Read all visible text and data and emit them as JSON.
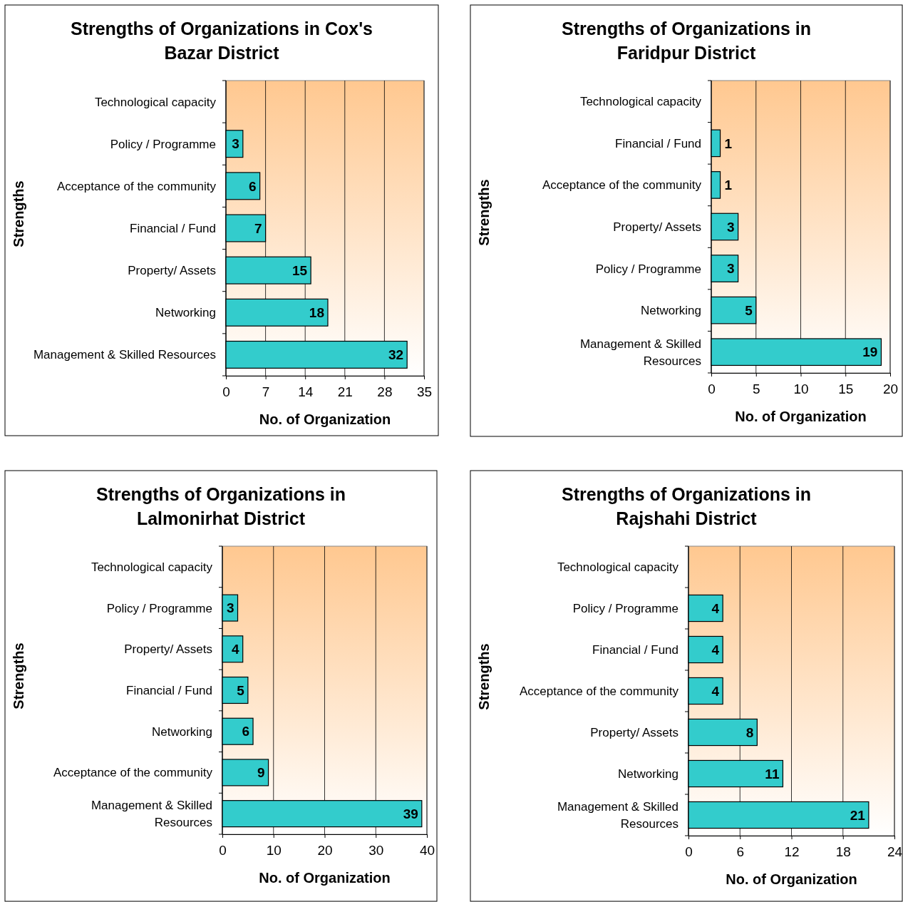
{
  "chart_data": [
    {
      "type": "bar",
      "orientation": "horizontal",
      "title": "Strengths of Organizations in Cox's Bazar District",
      "xlabel": "No. of Organization",
      "ylabel": "Strengths",
      "categories": [
        "Technological capacity",
        "Policy / Programme",
        "Acceptance of the community",
        "Financial / Fund",
        "Property/ Assets",
        "Networking",
        "Management & Skilled Resources"
      ],
      "values": [
        0,
        3,
        6,
        7,
        15,
        18,
        32
      ],
      "value_labels": [
        null,
        "3",
        "6",
        "7",
        "15",
        "18",
        "32"
      ],
      "color": "#33cccc",
      "xlim": [
        0,
        35
      ],
      "xticks": [
        0,
        7,
        14,
        21,
        28,
        35
      ],
      "grid": "x"
    },
    {
      "type": "bar",
      "orientation": "horizontal",
      "title": "Strengths of Organizations in Faridpur District",
      "xlabel": "No. of Organization",
      "ylabel": "Strengths",
      "categories": [
        "Technological capacity",
        "Financial / Fund",
        "Acceptance of the community",
        "Property/ Assets",
        "Policy / Programme",
        "Networking",
        "Management & Skilled Resources"
      ],
      "values": [
        0,
        1,
        1,
        3,
        3,
        5,
        19
      ],
      "value_labels": [
        null,
        "1",
        "1",
        "3",
        "3",
        "5",
        "19"
      ],
      "color": "#33cccc",
      "xlim": [
        0,
        20
      ],
      "xticks": [
        0,
        5,
        10,
        15,
        20
      ],
      "grid": "x"
    },
    {
      "type": "bar",
      "orientation": "horizontal",
      "title": "Strengths of Organizations in Lalmonirhat District",
      "xlabel": "No. of Organization",
      "ylabel": "Strengths",
      "categories": [
        "Technological capacity",
        "Policy / Programme",
        "Property/ Assets",
        "Financial / Fund",
        "Networking",
        "Acceptance of the community",
        "Management & Skilled Resources"
      ],
      "values": [
        0,
        3,
        4,
        5,
        6,
        9,
        39
      ],
      "value_labels": [
        null,
        "3",
        "4",
        "5",
        "6",
        "9",
        "39"
      ],
      "color": "#33cccc",
      "xlim": [
        0,
        40
      ],
      "xticks": [
        0,
        10,
        20,
        30,
        40
      ],
      "grid": "x"
    },
    {
      "type": "bar",
      "orientation": "horizontal",
      "title": "Strengths of Organizations in Rajshahi District",
      "xlabel": "No. of Organization",
      "ylabel": "Strengths",
      "categories": [
        "Technological capacity",
        "Policy / Programme",
        "Financial / Fund",
        "Acceptance of the community",
        "Property/ Assets",
        "Networking",
        "Management & Skilled Resources"
      ],
      "values": [
        0,
        4,
        4,
        4,
        8,
        11,
        21
      ],
      "value_labels": [
        null,
        "4",
        "4",
        "4",
        "8",
        "11",
        "21"
      ],
      "color": "#33cccc",
      "xlim": [
        0,
        24
      ],
      "xticks": [
        0,
        6,
        12,
        18,
        24
      ],
      "grid": "x"
    }
  ]
}
